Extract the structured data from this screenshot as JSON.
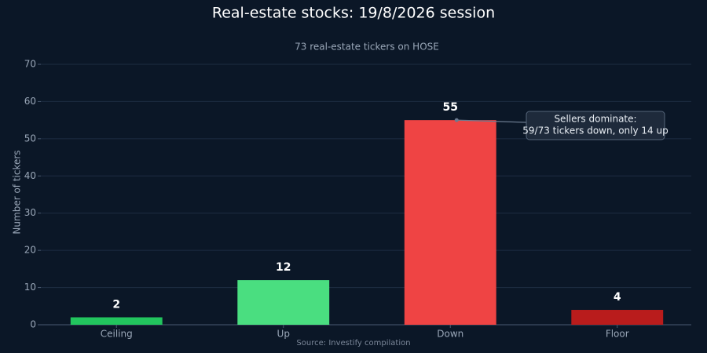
{
  "chart_data": {
    "type": "bar",
    "title": "Real-estate stocks: 19/8/2026 session",
    "subtitle": "73 real-estate tickers on HOSE",
    "y_label": "Number of tickers",
    "source": "Source: Investify compilation",
    "categories": [
      "Ceiling",
      "Up",
      "Down",
      "Floor"
    ],
    "values": [
      2,
      12,
      55,
      4
    ],
    "colors": [
      "#22c55e",
      "#4ade80",
      "#ef4444",
      "#b91c1c"
    ],
    "ylim": [
      0,
      70
    ],
    "yticks": [
      0,
      10,
      20,
      30,
      40,
      50,
      60,
      70
    ],
    "grid": true,
    "annotation": [
      "Sellers dominate:",
      "59/73 tickers down, only 14 up"
    ]
  }
}
